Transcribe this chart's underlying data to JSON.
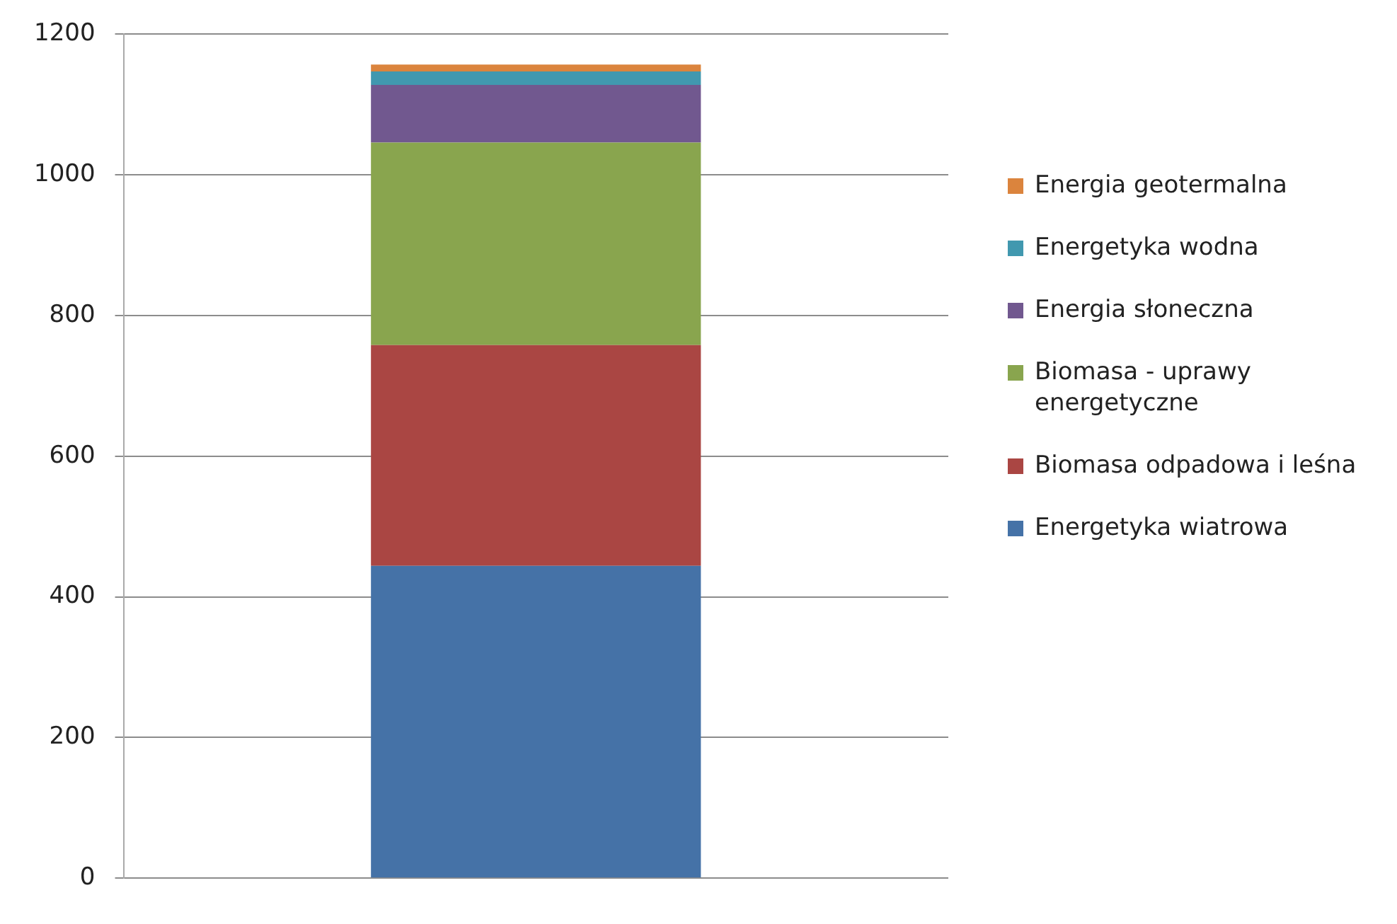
{
  "chart_data": {
    "type": "bar",
    "stacked": true,
    "categories": [
      null
    ],
    "series": [
      {
        "name": "Energetyka wiatrowa",
        "color": "#4572a7",
        "values": [
          444
        ]
      },
      {
        "name": "Biomasa odpadowa i leśna",
        "color": "#aa4643",
        "values": [
          314
        ]
      },
      {
        "name": "Biomasa - uprawy energetyczne",
        "color": "#89a54e",
        "values": [
          288
        ]
      },
      {
        "name": "Energia słoneczna",
        "color": "#71588f",
        "values": [
          82
        ]
      },
      {
        "name": "Energetyka wodna",
        "color": "#4198af",
        "values": [
          19
        ]
      },
      {
        "name": "Energia geotermalna",
        "color": "#db843d",
        "values": [
          10
        ]
      }
    ],
    "ylim": [
      0,
      1200
    ],
    "yticks": [
      0,
      200,
      400,
      600,
      800,
      1000,
      1200
    ],
    "grid": "y",
    "legend": "right"
  }
}
